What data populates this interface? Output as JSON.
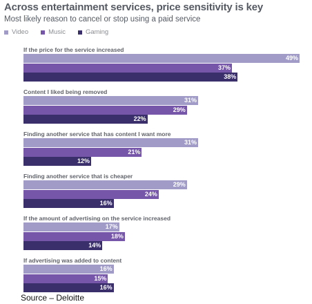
{
  "chart_data": {
    "type": "bar",
    "orientation": "horizontal",
    "title": "Across entertainment services, price sensitivity is key",
    "subtitle": "Most likely reason to cancel or stop using a paid service",
    "value_suffix": "%",
    "xlim": [
      0,
      49
    ],
    "legend_position": "top-left",
    "categories": [
      "If the price for the service increased",
      "Content I liked being removed",
      "Finding another service that has content I want more",
      "Finding another service that is cheaper",
      "If the amount of advertising on the service increased",
      "If advertising was added to content"
    ],
    "series": [
      {
        "name": "Video",
        "color": "#a09cc7",
        "values": [
          49,
          31,
          31,
          29,
          17,
          16
        ]
      },
      {
        "name": "Music",
        "color": "#7556a8",
        "values": [
          37,
          29,
          21,
          24,
          18,
          15
        ]
      },
      {
        "name": "Gaming",
        "color": "#3a2f6b",
        "values": [
          38,
          22,
          12,
          16,
          14,
          16
        ]
      }
    ]
  },
  "source": "Source – Deloitte"
}
